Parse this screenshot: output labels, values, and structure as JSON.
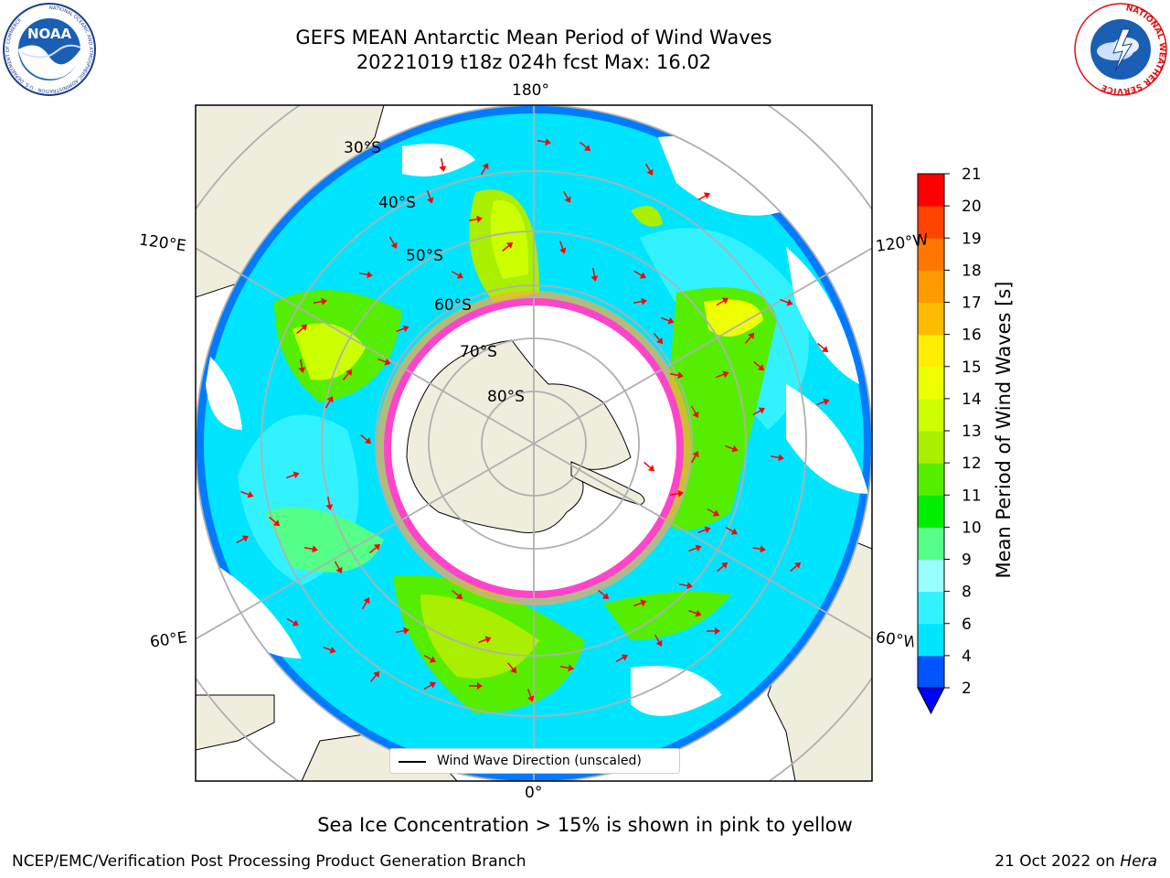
{
  "header": {
    "title_line1": "GEFS MEAN Antarctic Mean Period of Wind Waves",
    "title_line2": "20221019 t18z 024h fcst   Max: 16.02"
  },
  "logos": {
    "noaa_text": "NOAA",
    "noaa_ring": "NATIONAL OCEANIC AND ATMOSPHERIC ADMINISTRATION · U.S. DEPARTMENT OF COMMERCE",
    "nws_ring": "NATIONAL WEATHER SERVICE"
  },
  "map": {
    "projection": "south-polar-stereographic",
    "lon_labels": {
      "top": "180°",
      "bottom": "0°",
      "upper_left": "120°E",
      "upper_right": "120°W",
      "lower_left": "60°E",
      "lower_right": "60°W"
    },
    "lat_labels": [
      "30°S",
      "40°S",
      "50°S",
      "60°S",
      "70°S",
      "80°S"
    ],
    "legend_label": "Wind Wave Direction (unscaled)",
    "colors": {
      "land": "#efeedd",
      "ice_edge": "#ff44cc",
      "arrow": "#ff0000",
      "grid": "#b0b0b0"
    }
  },
  "colorbar": {
    "title": "Mean Period of Wind Waves [s]",
    "ticks": [
      "2",
      "4",
      "6",
      "8",
      "9",
      "10",
      "11",
      "12",
      "13",
      "14",
      "15",
      "16",
      "17",
      "18",
      "19",
      "20",
      "21"
    ],
    "colors": [
      "#0055ff",
      "#00e5ff",
      "#33f2ff",
      "#99ffff",
      "#55ff88",
      "#00ee00",
      "#55ee00",
      "#aaee00",
      "#ccff00",
      "#eeff00",
      "#ffee00",
      "#ffbb00",
      "#ff9900",
      "#ff7700",
      "#ff4400",
      "#ff0000"
    ],
    "under_color": "#0000ff"
  },
  "footer": {
    "note": "Sea Ice Concentration > 15% is shown in pink to yellow",
    "credit": "NCEP/EMC/Verification Post Processing Product Generation Branch",
    "date": "21 Oct 2022 on",
    "host": "Hera"
  }
}
